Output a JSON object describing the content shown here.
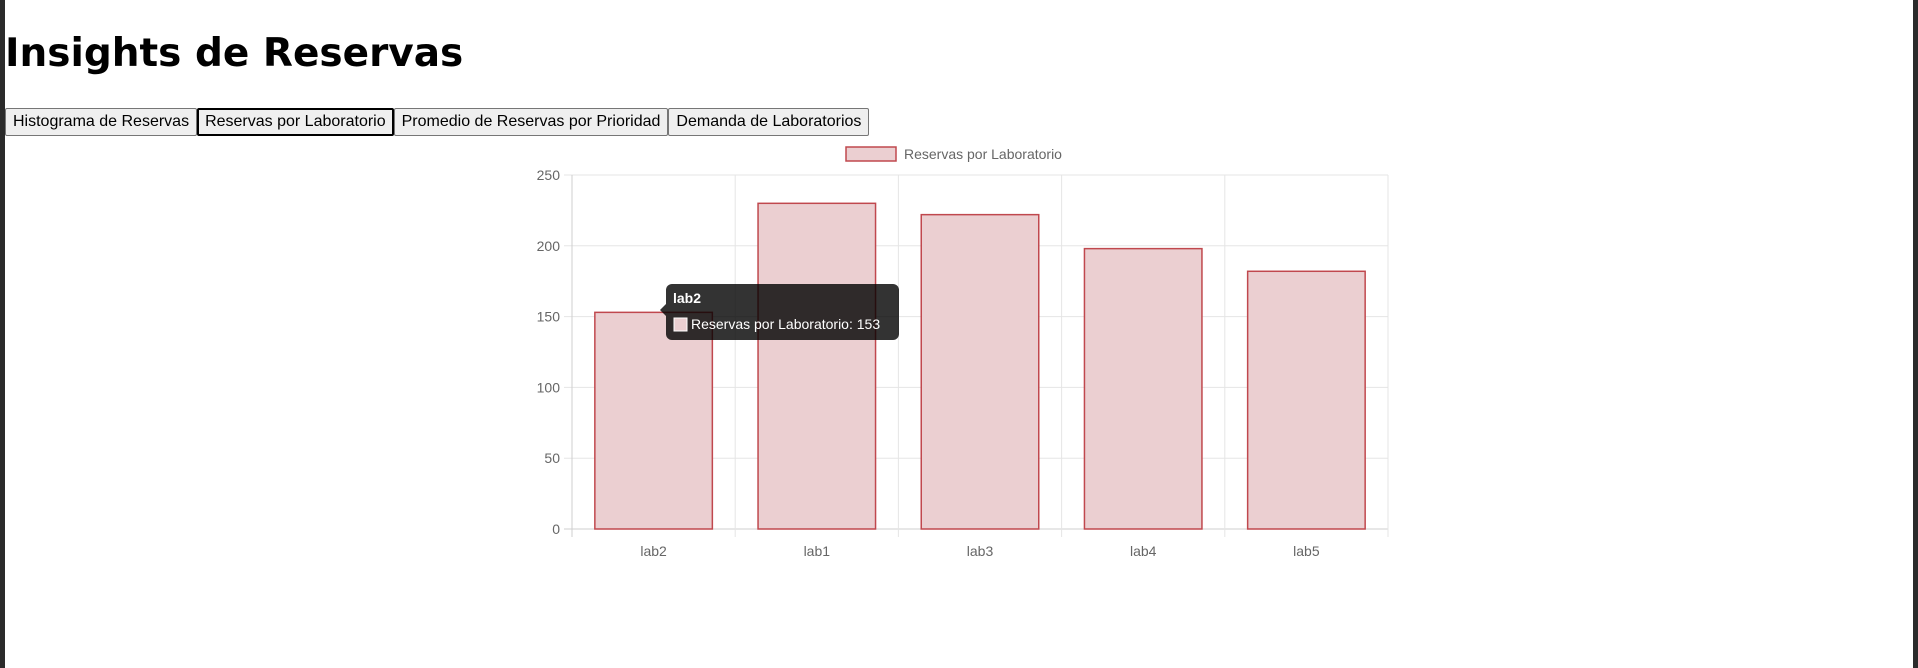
{
  "page": {
    "title": "Insights de Reservas"
  },
  "tabs": [
    {
      "label": "Histograma de Reservas",
      "active": false
    },
    {
      "label": "Reservas por Laboratorio",
      "active": true
    },
    {
      "label": "Promedio de Reservas por Prioridad",
      "active": false
    },
    {
      "label": "Demanda de Laboratorios",
      "active": false
    }
  ],
  "chart_data": {
    "type": "bar",
    "categories": [
      "lab2",
      "lab1",
      "lab3",
      "lab4",
      "lab5"
    ],
    "series": [
      {
        "name": "Reservas por Laboratorio",
        "values": [
          153,
          230,
          222,
          198,
          182
        ]
      }
    ],
    "ylim": [
      0,
      250
    ],
    "yticks": [
      0,
      50,
      100,
      150,
      200,
      250
    ],
    "grid": true,
    "legend": "top-center",
    "colors": {
      "fill": "#ebcfd1",
      "border": "#c0484e",
      "grid": "#e5e5e5",
      "tick": "#666666"
    },
    "tooltip": {
      "title": "lab2",
      "label": "Reservas por Laboratorio: 153"
    }
  }
}
